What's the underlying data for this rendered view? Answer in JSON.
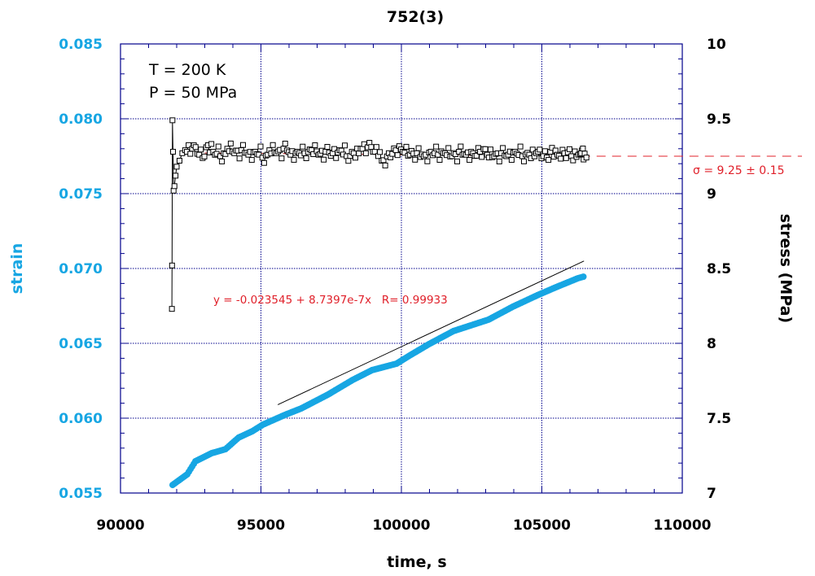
{
  "chart_data": {
    "type": "scatter",
    "title": "752(3)",
    "xlabel": "time, s",
    "ylabel_left": "strain",
    "ylabel_right": "stress (MPa)",
    "xlim": [
      90000,
      110000
    ],
    "ylim_left": [
      0.055,
      0.085
    ],
    "ylim_right": [
      7,
      10
    ],
    "x_ticks": [
      "90000",
      "95000",
      "100000",
      "105000",
      "110000"
    ],
    "y_left_ticks": [
      "0.055",
      "0.060",
      "0.065",
      "0.070",
      "0.075",
      "0.080",
      "0.085"
    ],
    "y_right_ticks": [
      "7",
      "7.5",
      "8",
      "8.5",
      "9",
      "9.5",
      "10"
    ],
    "grid": true,
    "annotations": {
      "temperature": "T = 200 K",
      "pressure": "P = 50 MPa",
      "fit": "y = -0.023545 + 8.7397e-7x   R= 0.99933",
      "sigma": "σ = 9.25 ± 0.15"
    },
    "colors": {
      "strain": "#17a6e3",
      "stress": "#000000",
      "fit_text": "#e0202a",
      "axis": "#00008b"
    },
    "sigma_level": 9.25,
    "fit_line": {
      "x": [
        95600,
        106500
      ],
      "y": [
        0.0609,
        0.0705
      ]
    },
    "series": [
      {
        "name": "strain",
        "axis": "left",
        "x": [
          91855,
          92377,
          92667,
          93246,
          93739,
          94203,
          94696,
          95072,
          95855,
          96435,
          97391,
          98261,
          98957,
          99826,
          100290,
          100986,
          101855,
          103101,
          103971,
          104841,
          105507,
          106290,
          106480
        ],
        "y": [
          0.05554,
          0.05625,
          0.05712,
          0.05766,
          0.05793,
          0.0587,
          0.05913,
          0.05957,
          0.06022,
          0.06065,
          0.06158,
          0.06255,
          0.06321,
          0.06364,
          0.06418,
          0.06495,
          0.06582,
          0.06658,
          0.06745,
          0.06821,
          0.06875,
          0.06935,
          0.06945
        ]
      },
      {
        "name": "stress",
        "axis": "right",
        "x": [
          91830,
          91835,
          91850,
          91870,
          91890,
          91920,
          91960,
          92000,
          92100,
          92200,
          92300,
          92550,
          92800,
          93050,
          93300,
          93550,
          93800,
          94050,
          94300,
          94550,
          94800,
          95050,
          95300,
          95550,
          95800,
          96050,
          96300,
          96550,
          96800,
          97050,
          97300,
          97550,
          97800,
          98050,
          98300,
          98550,
          98800,
          99050,
          99300,
          99550,
          99800,
          100050,
          100300,
          100550,
          100800,
          101050,
          101300,
          101550,
          101800,
          102050,
          102300,
          102550,
          102800,
          103050,
          103300,
          103550,
          103800,
          104050,
          104300,
          104550,
          104800,
          105050,
          105300,
          105550,
          105800,
          106050,
          106300,
          106400
        ],
        "y": [
          8.23,
          8.52,
          9.49,
          9.28,
          9.02,
          9.05,
          9.12,
          9.18,
          9.22,
          9.27,
          9.29,
          9.3,
          9.26,
          9.31,
          9.28,
          9.25,
          9.3,
          9.27,
          9.29,
          9.26,
          9.28,
          9.24,
          9.29,
          9.27,
          9.3,
          9.26,
          9.28,
          9.27,
          9.29,
          9.26,
          9.28,
          9.27,
          9.29,
          9.25,
          9.27,
          9.3,
          9.31,
          9.28,
          9.22,
          9.27,
          9.29,
          9.28,
          9.26,
          9.27,
          9.25,
          9.28,
          9.26,
          9.27,
          9.25,
          9.28,
          9.26,
          9.27,
          9.28,
          9.26,
          9.25,
          9.27,
          9.26,
          9.28,
          9.25,
          9.26,
          9.27,
          9.25,
          9.28,
          9.26,
          9.27,
          9.25,
          9.26,
          9.27
        ]
      }
    ]
  }
}
